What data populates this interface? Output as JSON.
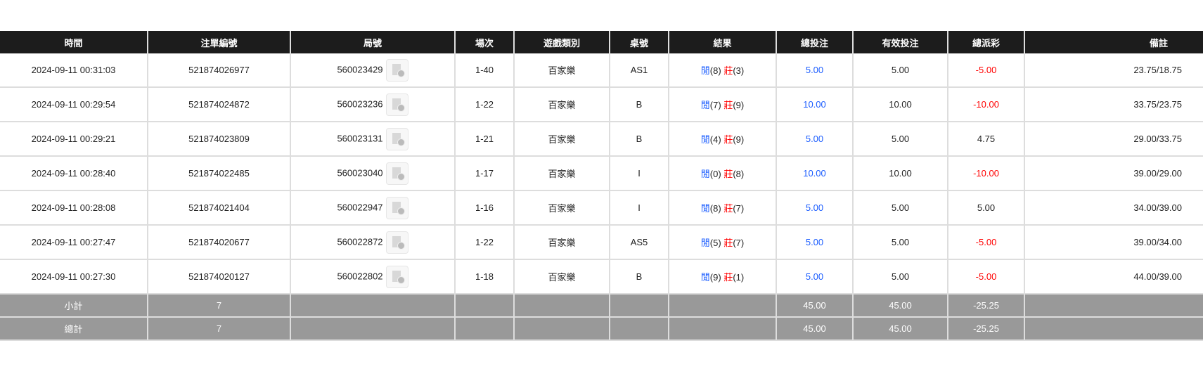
{
  "headers": [
    "時間",
    "注單編號",
    "局號",
    "場次",
    "遊戲類別",
    "桌號",
    "結果",
    "總投注",
    "有效投注",
    "總派彩",
    "備註"
  ],
  "colors": {
    "header_bg": "#1c1c1c",
    "summary_bg": "#999999",
    "blue": "#1a5cff",
    "red": "#ff0000"
  },
  "rows": [
    {
      "time": "2024-09-11 00:31:03",
      "bet_id": "521874026977",
      "round": "560023429",
      "shoe": "1-40",
      "game": "百家樂",
      "table": "AS1",
      "player": "閒",
      "player_pts": "(8)",
      "banker": "莊",
      "banker_pts": "(3)",
      "total_bet": "5.00",
      "valid_bet": "5.00",
      "payout": "-5.00",
      "payout_neg": true,
      "remark": "23.75/18.75"
    },
    {
      "time": "2024-09-11 00:29:54",
      "bet_id": "521874024872",
      "round": "560023236",
      "shoe": "1-22",
      "game": "百家樂",
      "table": "B",
      "player": "閒",
      "player_pts": "(7)",
      "banker": "莊",
      "banker_pts": "(9)",
      "total_bet": "10.00",
      "valid_bet": "10.00",
      "payout": "-10.00",
      "payout_neg": true,
      "remark": "33.75/23.75"
    },
    {
      "time": "2024-09-11 00:29:21",
      "bet_id": "521874023809",
      "round": "560023131",
      "shoe": "1-21",
      "game": "百家樂",
      "table": "B",
      "player": "閒",
      "player_pts": "(4)",
      "banker": "莊",
      "banker_pts": "(9)",
      "total_bet": "5.00",
      "valid_bet": "5.00",
      "payout": "4.75",
      "payout_neg": false,
      "remark": "29.00/33.75"
    },
    {
      "time": "2024-09-11 00:28:40",
      "bet_id": "521874022485",
      "round": "560023040",
      "shoe": "1-17",
      "game": "百家樂",
      "table": "I",
      "player": "閒",
      "player_pts": "(0)",
      "banker": "莊",
      "banker_pts": "(8)",
      "total_bet": "10.00",
      "valid_bet": "10.00",
      "payout": "-10.00",
      "payout_neg": true,
      "remark": "39.00/29.00"
    },
    {
      "time": "2024-09-11 00:28:08",
      "bet_id": "521874021404",
      "round": "560022947",
      "shoe": "1-16",
      "game": "百家樂",
      "table": "I",
      "player": "閒",
      "player_pts": "(8)",
      "banker": "莊",
      "banker_pts": "(7)",
      "total_bet": "5.00",
      "valid_bet": "5.00",
      "payout": "5.00",
      "payout_neg": false,
      "remark": "34.00/39.00"
    },
    {
      "time": "2024-09-11 00:27:47",
      "bet_id": "521874020677",
      "round": "560022872",
      "shoe": "1-22",
      "game": "百家樂",
      "table": "AS5",
      "player": "閒",
      "player_pts": "(5)",
      "banker": "莊",
      "banker_pts": "(7)",
      "total_bet": "5.00",
      "valid_bet": "5.00",
      "payout": "-5.00",
      "payout_neg": true,
      "remark": "39.00/34.00"
    },
    {
      "time": "2024-09-11 00:27:30",
      "bet_id": "521874020127",
      "round": "560022802",
      "shoe": "1-18",
      "game": "百家樂",
      "table": "B",
      "player": "閒",
      "player_pts": "(9)",
      "banker": "莊",
      "banker_pts": "(1)",
      "total_bet": "5.00",
      "valid_bet": "5.00",
      "payout": "-5.00",
      "payout_neg": true,
      "remark": "44.00/39.00"
    }
  ],
  "subtotal": {
    "label": "小計",
    "count": "7",
    "total_bet": "45.00",
    "valid_bet": "45.00",
    "payout": "-25.25"
  },
  "grandtotal": {
    "label": "總計",
    "count": "7",
    "total_bet": "45.00",
    "valid_bet": "45.00",
    "payout": "-25.25"
  }
}
